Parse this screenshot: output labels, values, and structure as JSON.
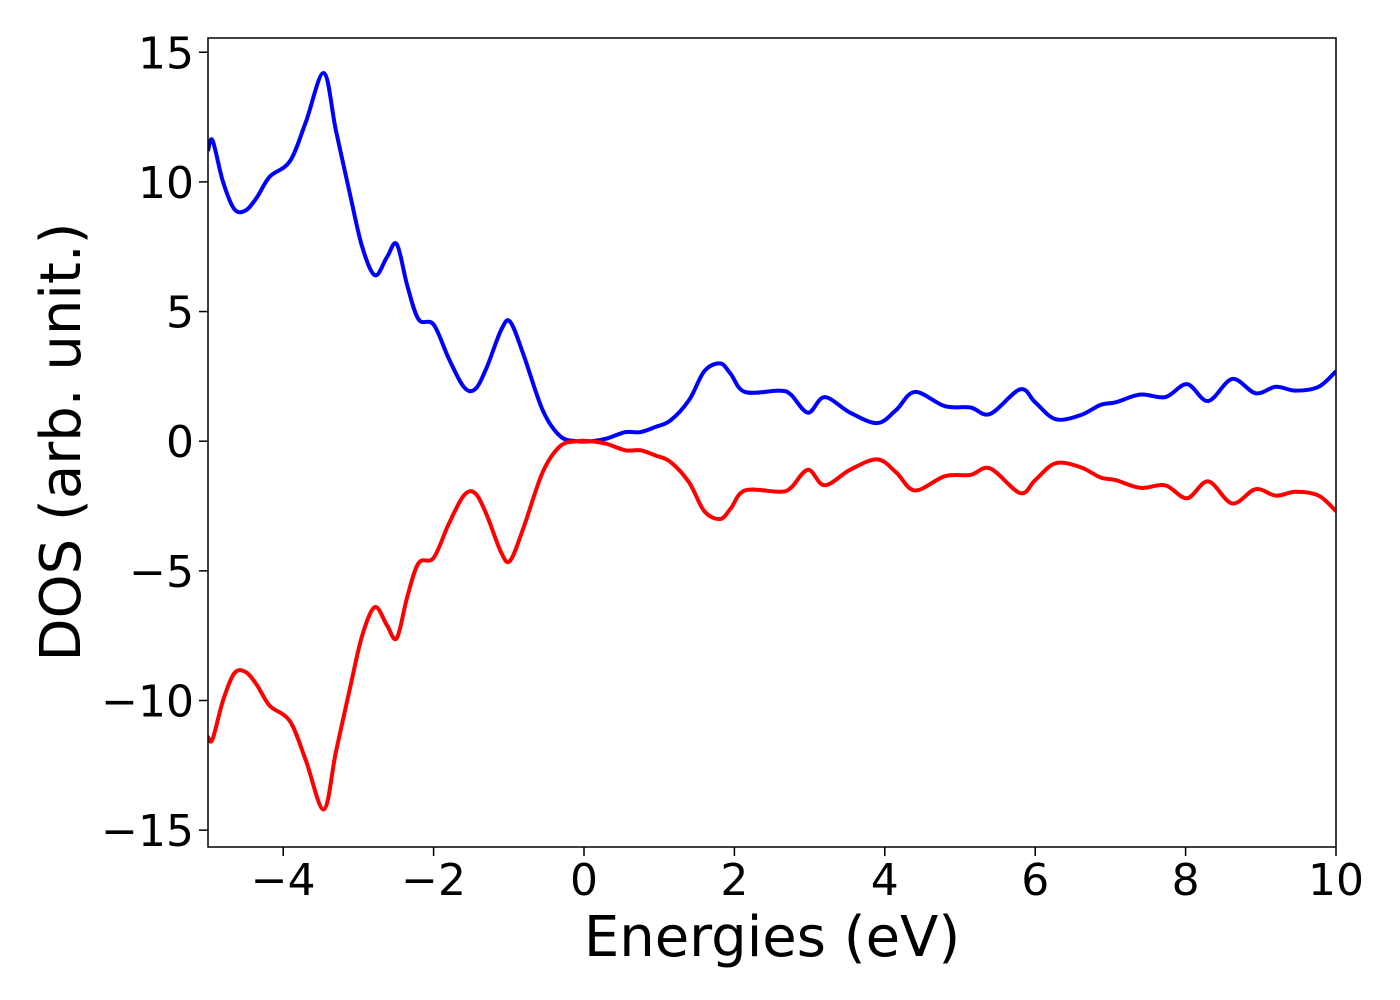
{
  "chart_data": {
    "type": "line",
    "xlabel": "Energies (eV)",
    "ylabel": "DOS (arb. unit.)",
    "x": [
      -5,
      -4.94,
      -4.8,
      -4.65,
      -4.5,
      -4.35,
      -4.18,
      -3.91,
      -3.7,
      -3.46,
      -3.3,
      -3.11,
      -2.95,
      -2.78,
      -2.62,
      -2.49,
      -2.35,
      -2.2,
      -2.0,
      -1.8,
      -1.6,
      -1.45,
      -1.3,
      -1.1,
      -0.98,
      -0.8,
      -0.55,
      -0.32,
      -0.1,
      0.1,
      0.3,
      0.55,
      0.75,
      0.95,
      1.15,
      1.4,
      1.6,
      1.81,
      1.95,
      2.14,
      2.6,
      2.75,
      2.98,
      3.2,
      3.54,
      3.9,
      4.15,
      4.4,
      4.8,
      5.14,
      5.4,
      5.8,
      6.0,
      6.27,
      6.6,
      6.87,
      7.07,
      7.4,
      7.73,
      8.02,
      8.3,
      8.62,
      8.93,
      9.2,
      9.46,
      9.77,
      10
    ],
    "series": [
      {
        "color": "#0000ff",
        "values": [
          11.2,
          11.6,
          10.0,
          8.95,
          8.9,
          9.4,
          10.2,
          10.8,
          12.3,
          14.2,
          12.0,
          9.5,
          7.5,
          6.4,
          7.1,
          7.6,
          6.0,
          4.7,
          4.5,
          3.2,
          2.1,
          2.0,
          2.8,
          4.3,
          4.6,
          3.3,
          1.2,
          0.2,
          0.0,
          0.0,
          0.1,
          0.35,
          0.35,
          0.55,
          0.8,
          1.6,
          2.7,
          3.0,
          2.6,
          1.9,
          1.95,
          1.8,
          1.1,
          1.7,
          1.1,
          0.7,
          1.2,
          1.9,
          1.35,
          1.3,
          1.05,
          2.0,
          1.5,
          0.85,
          1.0,
          1.4,
          1.5,
          1.8,
          1.7,
          2.2,
          1.55,
          2.4,
          1.85,
          2.1,
          1.95,
          2.1,
          2.7
        ]
      },
      {
        "color": "#ff0000",
        "values": [
          -11.4,
          -11.5,
          -10.0,
          -8.95,
          -8.9,
          -9.4,
          -10.2,
          -10.8,
          -12.3,
          -14.2,
          -12.0,
          -9.5,
          -7.5,
          -6.4,
          -7.1,
          -7.6,
          -6.0,
          -4.7,
          -4.5,
          -3.2,
          -2.1,
          -2.0,
          -2.8,
          -4.3,
          -4.6,
          -3.3,
          -1.2,
          -0.2,
          0.0,
          0.0,
          -0.1,
          -0.35,
          -0.35,
          -0.55,
          -0.8,
          -1.6,
          -2.7,
          -3.0,
          -2.6,
          -1.9,
          -1.95,
          -1.8,
          -1.1,
          -1.7,
          -1.1,
          -0.7,
          -1.2,
          -1.9,
          -1.35,
          -1.3,
          -1.05,
          -2.0,
          -1.5,
          -0.85,
          -1.0,
          -1.4,
          -1.5,
          -1.8,
          -1.7,
          -2.2,
          -1.55,
          -2.4,
          -1.85,
          -2.1,
          -1.95,
          -2.1,
          -2.7
        ]
      }
    ],
    "xlim": [
      -5,
      10
    ],
    "xticks": [
      {
        "value": -4,
        "label": "−4"
      },
      {
        "value": -2,
        "label": "−2"
      },
      0,
      2,
      4,
      6,
      8,
      10
    ],
    "ylim": [
      -15.65,
      15.55
    ],
    "yticks": [
      {
        "value": -15,
        "label": "−15"
      },
      {
        "value": -10,
        "label": "−10"
      },
      {
        "value": -5,
        "label": "−5"
      },
      0,
      5,
      10,
      15
    ],
    "grid": false
  }
}
